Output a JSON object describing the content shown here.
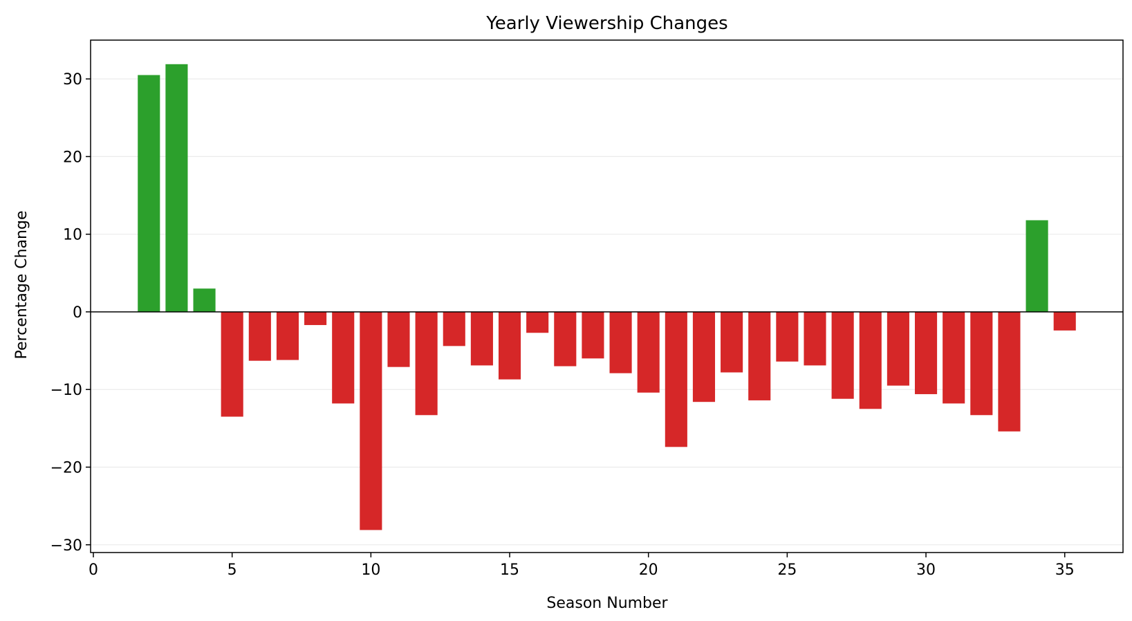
{
  "chart_data": {
    "type": "bar",
    "title": "Yearly Viewership Changes",
    "xlabel": "Season Number",
    "ylabel": "Percentage Change",
    "x": [
      2,
      3,
      4,
      5,
      6,
      7,
      8,
      9,
      10,
      11,
      12,
      13,
      14,
      15,
      16,
      17,
      18,
      19,
      20,
      21,
      22,
      23,
      24,
      25,
      26,
      27,
      28,
      29,
      30,
      31,
      32,
      33,
      34,
      35
    ],
    "values": [
      30.5,
      31.9,
      3.0,
      -13.5,
      -6.3,
      -6.2,
      -1.7,
      -11.8,
      -28.1,
      -7.1,
      -13.3,
      -4.4,
      -6.9,
      -8.7,
      -2.7,
      -7.0,
      -6.0,
      -7.9,
      -10.4,
      -17.4,
      -11.6,
      -7.8,
      -11.4,
      -6.4,
      -6.9,
      -11.2,
      -12.5,
      -9.5,
      -10.6,
      -11.8,
      -13.3,
      -15.4,
      11.8,
      -2.4
    ],
    "xlim": [
      -0.1,
      37.1
    ],
    "ylim": [
      -31.0,
      35.0
    ],
    "xticks": [
      0,
      5,
      10,
      15,
      20,
      25,
      30,
      35
    ],
    "xtick_labels": [
      "0",
      "5",
      "10",
      "15",
      "20",
      "25",
      "30",
      "35"
    ],
    "yticks": [
      -30,
      -20,
      -10,
      0,
      10,
      20,
      30
    ],
    "ytick_labels": [
      "−30",
      "−20",
      "−10",
      "0",
      "10",
      "20",
      "30"
    ],
    "bar_width": 0.8,
    "grid": "horizontal",
    "zero_line": true,
    "colors": {
      "positive": "#2ca02c",
      "negative": "#d62728",
      "grid": "#ebebeb",
      "axis": "#000000"
    }
  }
}
